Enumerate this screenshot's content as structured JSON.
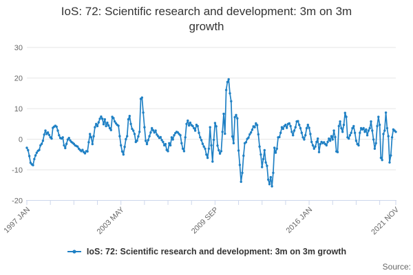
{
  "title_lines": [
    "IoS: 72: Scientific research and development: 3m on 3m",
    "growth"
  ],
  "legend": {
    "label": "IoS: 72: Scientific research and development: 3m on 3m growth"
  },
  "source_label": "Source:",
  "colors": {
    "line": "#1f80c4",
    "grid": "#e6e6e6",
    "axis": "#ccd6eb",
    "axis_label": "#666666",
    "title_text": "#333333",
    "legend_text": "#333333",
    "source_text": "#666666"
  },
  "chart_data": {
    "type": "line",
    "title": "IoS: 72: Scientific research and development: 3m on 3m growth",
    "series_name": "IoS: 72: Scientific research and development: 3m on 3m growth",
    "x_start": "1997 JAN",
    "x_end": "2021 NOV",
    "frequency": "monthly",
    "n_points": 299,
    "x_tick_labels": [
      "1997 JAN",
      "2003 MAY",
      "2009 SEP",
      "2016 JAN",
      "2021 NOV"
    ],
    "x_tick_month_indices": [
      0,
      76,
      152,
      228,
      298
    ],
    "minor_tick_month_indices": [
      0,
      19,
      38,
      57,
      76,
      95,
      114,
      133,
      152,
      171,
      190,
      209,
      228,
      247,
      266,
      285,
      298
    ],
    "y_ticks": [
      30,
      20,
      10,
      0,
      -10,
      -20
    ],
    "ylim": [
      -20,
      30
    ],
    "xlabel": "",
    "ylabel": "",
    "grid": "horizontal",
    "legend_position": "bottom",
    "marker": "circle",
    "values": [
      -2.8,
      -3.6,
      -5.5,
      -7.7,
      -8.2,
      -8.5,
      -6.5,
      -5.3,
      -4.4,
      -3.8,
      -3.5,
      -2.0,
      -1.5,
      -0.5,
      1.5,
      2.8,
      1.7,
      2.2,
      1.4,
      0.6,
      0.2,
      3.7,
      4.1,
      4.4,
      4.1,
      2.8,
      1.3,
      0.4,
      0.2,
      0.6,
      -2.0,
      -2.9,
      -1.5,
      -0.1,
      0.4,
      -0.4,
      -0.9,
      -1.2,
      -1.5,
      -2.0,
      -2.2,
      -2.4,
      -3.1,
      -3.5,
      -3.9,
      -3.5,
      -4.2,
      -4.6,
      -3.9,
      -4.0,
      -1.0,
      1.7,
      0.6,
      -1.6,
      1.0,
      3.9,
      5.0,
      4.3,
      5.5,
      6.7,
      7.4,
      6.7,
      4.9,
      6.5,
      4.3,
      5.4,
      4.5,
      3.6,
      3.0,
      7.3,
      6.9,
      5.8,
      5.2,
      4.7,
      4.4,
      1.0,
      -2.0,
      -4.0,
      -5.0,
      -2.5,
      0.0,
      1.0,
      6.5,
      7.6,
      5.0,
      3.4,
      2.8,
      1.7,
      -0.9,
      -0.5,
      0.9,
      2.4,
      13.2,
      13.6,
      8.7,
      3.9,
      -0.5,
      -1.6,
      -0.3,
      1.0,
      2.2,
      3.6,
      2.9,
      2.2,
      2.8,
      1.5,
      1.0,
      0.4,
      0.7,
      -0.3,
      -0.9,
      -2.0,
      -1.6,
      -3.5,
      -3.9,
      -1.3,
      -2.0,
      0.6,
      -0.1,
      1.3,
      2.0,
      2.4,
      2.2,
      1.7,
      1.3,
      -1.3,
      -3.1,
      -3.9,
      0.6,
      5.0,
      6.1,
      4.5,
      5.4,
      4.6,
      4.3,
      3.6,
      2.8,
      4.7,
      4.3,
      2.1,
      0.6,
      -0.3,
      -1.5,
      -2.4,
      -3.1,
      -5.0,
      -6.1,
      -3.1,
      3.9,
      -2.0,
      -7.3,
      -0.2,
      5.3,
      4.2,
      -2.1,
      -3.6,
      -4.7,
      -3.9,
      2.4,
      8.3,
      1.8,
      16.1,
      18.7,
      19.6,
      15.0,
      12.4,
      0.9,
      -1.3,
      7.2,
      7.9,
      6.8,
      -3.7,
      -8.4,
      -13.9,
      -11.0,
      -5.4,
      -1.3,
      -1.0,
      0.1,
      0.5,
      1.6,
      2.2,
      3.1,
      4.2,
      3.9,
      5.2,
      4.6,
      1.6,
      -2.4,
      -5.0,
      -9.1,
      -6.5,
      -3.6,
      -7.6,
      -8.7,
      -13.2,
      -14.7,
      -12.4,
      -15.4,
      -11.0,
      -2.8,
      -4.4,
      -3.1,
      0.6,
      0.7,
      2.1,
      3.9,
      3.4,
      4.3,
      4.7,
      3.7,
      5.0,
      5.2,
      4.3,
      2.4,
      1.3,
      2.8,
      3.9,
      5.8,
      5.9,
      4.7,
      3.6,
      2.1,
      0.6,
      -0.1,
      1.3,
      3.6,
      4.7,
      3.7,
      1.7,
      -0.9,
      -2.0,
      -3.1,
      -2.4,
      -0.9,
      0.2,
      -4.2,
      -1.6,
      -0.9,
      -1.3,
      -1.0,
      -1.6,
      -2.0,
      -0.9,
      0.2,
      -0.5,
      1.0,
      -0.1,
      2.8,
      0.7,
      -4.0,
      -4.2,
      4.3,
      5.8,
      3.6,
      2.4,
      4.7,
      8.6,
      7.3,
      0.6,
      0.2,
      1.3,
      2.1,
      3.6,
      4.3,
      2.1,
      -0.5,
      -1.6,
      -2.0,
      2.1,
      3.6,
      3.2,
      3.6,
      2.4,
      3.2,
      1.3,
      2.8,
      3.6,
      5.8,
      2.8,
      -0.1,
      -3.1,
      -1.3,
      4.3,
      7.3,
      4.7,
      -6.1,
      -6.8,
      1.7,
      2.8,
      8.7,
      3.6,
      1.0,
      -7.6,
      -5.3,
      0.6,
      3.2,
      2.8,
      2.4
    ]
  }
}
